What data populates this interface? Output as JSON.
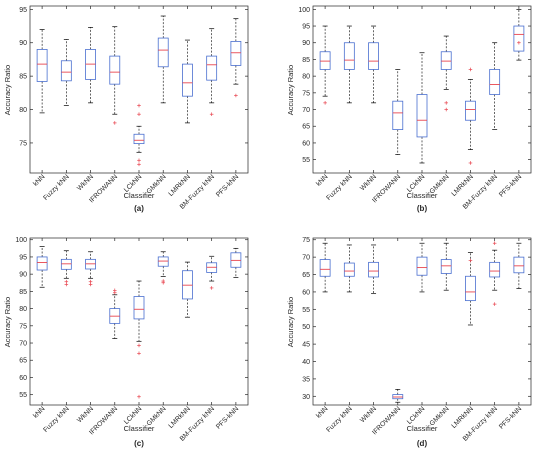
{
  "categories": [
    "kNN",
    "Fuzzy kNN",
    "WkNN",
    "IFROWANN",
    "LCkNN",
    "GMkNN",
    "LMRkNN",
    "BM-Fuzzy kNN",
    "PFS-kNN"
  ],
  "colors": {
    "box": "#4a6fd0",
    "median": "#e8454f",
    "outlier": "#e8454f",
    "whisker": "#000000",
    "axis": "#262626"
  },
  "chart_data": [
    {
      "type": "box",
      "panel_label": "(a)",
      "xlabel": "Classifier",
      "ylabel": "Accuracy Ratio",
      "ylim": [
        70.5,
        95.5
      ],
      "yticks": [
        75,
        80,
        85,
        90,
        95
      ],
      "series": [
        {
          "category": "kNN",
          "min": 79.5,
          "q1": 84.2,
          "median": 86.8,
          "q3": 89.0,
          "max": 92.0,
          "outliers": []
        },
        {
          "category": "Fuzzy kNN",
          "min": 80.6,
          "q1": 84.3,
          "median": 85.6,
          "q3": 87.3,
          "max": 90.5,
          "outliers": []
        },
        {
          "category": "WkNN",
          "min": 81.0,
          "q1": 84.5,
          "median": 86.8,
          "q3": 89.0,
          "max": 92.3,
          "outliers": []
        },
        {
          "category": "IFROWANN",
          "min": 79.3,
          "q1": 83.8,
          "median": 85.6,
          "q3": 88.0,
          "max": 92.4,
          "outliers": [
            78.0
          ]
        },
        {
          "category": "LCkNN",
          "min": 73.6,
          "q1": 74.9,
          "median": 75.4,
          "q3": 76.3,
          "max": 77.5,
          "outliers": [
            79.3,
            80.6,
            72.4,
            71.8
          ]
        },
        {
          "category": "GMkNN",
          "min": 81.0,
          "q1": 86.4,
          "median": 88.9,
          "q3": 90.7,
          "max": 94.0,
          "outliers": []
        },
        {
          "category": "LMRkNN",
          "min": 78.0,
          "q1": 82.0,
          "median": 84.0,
          "q3": 86.8,
          "max": 90.4,
          "outliers": []
        },
        {
          "category": "BM-Fuzzy kNN",
          "min": 81.0,
          "q1": 84.4,
          "median": 86.7,
          "q3": 88.0,
          "max": 92.1,
          "outliers": [
            79.3
          ]
        },
        {
          "category": "PFS-kNN",
          "min": 83.8,
          "q1": 86.6,
          "median": 88.5,
          "q3": 90.2,
          "max": 93.6,
          "outliers": [
            82.1
          ]
        }
      ]
    },
    {
      "type": "box",
      "panel_label": "(b)",
      "xlabel": "Classifier",
      "ylabel": "Accuracy Ratio",
      "ylim": [
        51,
        101
      ],
      "yticks": [
        55,
        60,
        65,
        70,
        75,
        80,
        85,
        90,
        95,
        100
      ],
      "series": [
        {
          "category": "kNN",
          "min": 74.0,
          "q1": 82.0,
          "median": 84.5,
          "q3": 87.3,
          "max": 95.0,
          "outliers": [
            72.0
          ]
        },
        {
          "category": "Fuzzy kNN",
          "min": 72.0,
          "q1": 82.0,
          "median": 84.8,
          "q3": 90.0,
          "max": 95.0,
          "outliers": []
        },
        {
          "category": "WkNN",
          "min": 72.0,
          "q1": 82.0,
          "median": 84.5,
          "q3": 90.0,
          "max": 95.0,
          "outliers": []
        },
        {
          "category": "IFROWANN",
          "min": 56.5,
          "q1": 64.0,
          "median": 69.0,
          "q3": 72.5,
          "max": 82.0,
          "outliers": []
        },
        {
          "category": "LCkNN",
          "min": 54.0,
          "q1": 61.8,
          "median": 66.8,
          "q3": 74.5,
          "max": 87.0,
          "outliers": []
        },
        {
          "category": "GMkNN",
          "min": 76.0,
          "q1": 82.0,
          "median": 84.5,
          "q3": 87.3,
          "max": 92.0,
          "outliers": [
            72.0,
            70.0
          ]
        },
        {
          "category": "LMRkNN",
          "min": 58.0,
          "q1": 66.8,
          "median": 70.0,
          "q3": 72.5,
          "max": 79.0,
          "outliers": [
            82.0,
            54.0
          ]
        },
        {
          "category": "BM-Fuzzy kNN",
          "min": 64.0,
          "q1": 74.5,
          "median": 77.5,
          "q3": 82.0,
          "max": 90.0,
          "outliers": []
        },
        {
          "category": "PFS-kNN",
          "min": 84.8,
          "q1": 87.5,
          "median": 92.5,
          "q3": 95.0,
          "max": 100.0,
          "outliers": [
            90.0
          ]
        }
      ]
    },
    {
      "type": "box",
      "panel_label": "(c)",
      "xlabel": "Classifier",
      "ylabel": "Accuracy Ratio",
      "ylim": [
        52,
        100.5
      ],
      "yticks": [
        55,
        60,
        65,
        70,
        75,
        80,
        85,
        90,
        95,
        100
      ],
      "series": [
        {
          "category": "kNN",
          "min": 86.2,
          "q1": 91.2,
          "median": 93.4,
          "q3": 95.0,
          "max": 98.0,
          "outliers": []
        },
        {
          "category": "Fuzzy kNN",
          "min": 88.8,
          "q1": 91.4,
          "median": 93.0,
          "q3": 94.3,
          "max": 96.8,
          "outliers": [
            87.8,
            87.0
          ]
        },
        {
          "category": "WkNN",
          "min": 88.8,
          "q1": 91.5,
          "median": 93.0,
          "q3": 94.3,
          "max": 96.5,
          "outliers": [
            87.8,
            87.0
          ]
        },
        {
          "category": "IFROWANN",
          "min": 71.3,
          "q1": 75.7,
          "median": 77.8,
          "q3": 80.0,
          "max": 84.0,
          "outliers": [
            85.3,
            84.6
          ]
        },
        {
          "category": "LCkNN",
          "min": 70.5,
          "q1": 77.0,
          "median": 79.8,
          "q3": 83.5,
          "max": 88.0,
          "outliers": [
            69.3,
            67.0,
            54.4
          ]
        },
        {
          "category": "GMkNN",
          "min": 89.3,
          "q1": 92.3,
          "median": 93.8,
          "q3": 95.0,
          "max": 96.5,
          "outliers": [
            88.0,
            87.5
          ]
        },
        {
          "category": "LMRkNN",
          "min": 77.5,
          "q1": 82.8,
          "median": 86.8,
          "q3": 91.0,
          "max": 93.5,
          "outliers": []
        },
        {
          "category": "BM-Fuzzy kNN",
          "min": 88.0,
          "q1": 90.5,
          "median": 92.0,
          "q3": 93.3,
          "max": 95.2,
          "outliers": [
            86.0
          ]
        },
        {
          "category": "PFS-kNN",
          "min": 89.0,
          "q1": 92.0,
          "median": 94.0,
          "q3": 96.2,
          "max": 97.5,
          "outliers": []
        }
      ]
    },
    {
      "type": "box",
      "panel_label": "(d)",
      "xlabel": "Classifier",
      "ylabel": "Accuracy Ratio",
      "ylim": [
        27.5,
        75.5
      ],
      "yticks": [
        30,
        35,
        40,
        45,
        50,
        55,
        60,
        65,
        70,
        75
      ],
      "series": [
        {
          "category": "kNN",
          "min": 60.0,
          "q1": 64.5,
          "median": 66.5,
          "q3": 69.3,
          "max": 74.0,
          "outliers": []
        },
        {
          "category": "Fuzzy kNN",
          "min": 60.0,
          "q1": 64.5,
          "median": 66.0,
          "q3": 68.3,
          "max": 73.5,
          "outliers": []
        },
        {
          "category": "WkNN",
          "min": 59.5,
          "q1": 64.3,
          "median": 66.0,
          "q3": 68.5,
          "max": 73.5,
          "outliers": []
        },
        {
          "category": "IFROWANN",
          "min": 28.3,
          "q1": 29.3,
          "median": 29.8,
          "q3": 30.5,
          "max": 32.0,
          "outliers": []
        },
        {
          "category": "LCkNN",
          "min": 60.0,
          "q1": 64.8,
          "median": 67.0,
          "q3": 70.0,
          "max": 74.0,
          "outliers": []
        },
        {
          "category": "GMkNN",
          "min": 60.5,
          "q1": 65.3,
          "median": 67.5,
          "q3": 69.3,
          "max": 74.0,
          "outliers": []
        },
        {
          "category": "LMRkNN",
          "min": 50.5,
          "q1": 57.5,
          "median": 60.0,
          "q3": 64.5,
          "max": 71.3,
          "outliers": [
            69.0
          ]
        },
        {
          "category": "BM-Fuzzy kNN",
          "min": 60.5,
          "q1": 64.3,
          "median": 66.0,
          "q3": 68.5,
          "max": 72.0,
          "outliers": [
            74.0,
            56.5
          ]
        },
        {
          "category": "PFS-kNN",
          "min": 61.0,
          "q1": 65.5,
          "median": 67.5,
          "q3": 70.0,
          "max": 74.0,
          "outliers": []
        }
      ]
    }
  ]
}
